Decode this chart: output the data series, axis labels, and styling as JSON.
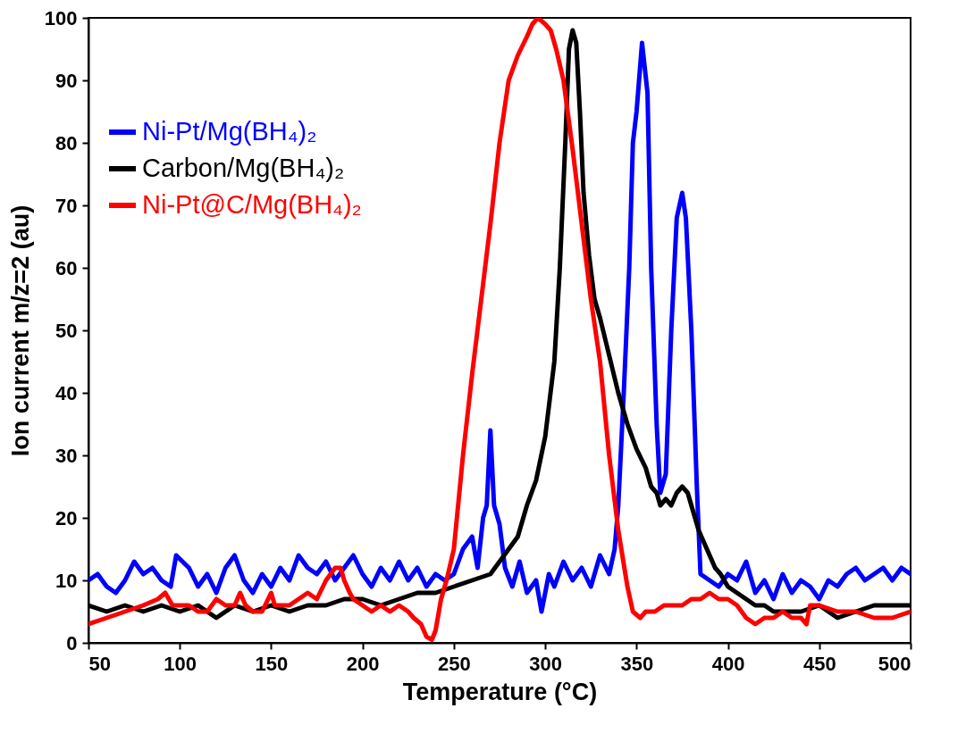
{
  "chart_data": {
    "type": "line",
    "xlabel": "Temperature (°C)",
    "ylabel": "Ion current m/z=2 (au)",
    "xlim": [
      50,
      500
    ],
    "ylim": [
      0,
      100
    ],
    "xticks": [
      50,
      100,
      150,
      200,
      250,
      300,
      350,
      400,
      450,
      500
    ],
    "yticks": [
      0,
      10,
      20,
      30,
      40,
      50,
      60,
      70,
      80,
      90,
      100
    ],
    "grid": false,
    "legend": "top left",
    "line_style": "solid",
    "series": [
      {
        "name": "Ni-Pt/Mg(BH₄)₂",
        "color": "#0000ff",
        "x": [
          50,
          55,
          60,
          65,
          70,
          75,
          80,
          85,
          90,
          95,
          98,
          105,
          110,
          115,
          120,
          125,
          130,
          135,
          140,
          145,
          150,
          155,
          160,
          165,
          170,
          175,
          180,
          185,
          190,
          195,
          200,
          205,
          210,
          215,
          220,
          225,
          230,
          235,
          240,
          245,
          250,
          255,
          260,
          263,
          266,
          268,
          270,
          272,
          275,
          278,
          282,
          286,
          290,
          295,
          298,
          302,
          305,
          310,
          315,
          320,
          325,
          330,
          335,
          338,
          340,
          343,
          346,
          348,
          350,
          353,
          356,
          358,
          361,
          363,
          366,
          369,
          372,
          375,
          377,
          380,
          383,
          385,
          390,
          395,
          400,
          405,
          410,
          415,
          420,
          425,
          430,
          435,
          440,
          445,
          450,
          455,
          460,
          465,
          470,
          475,
          480,
          485,
          490,
          495,
          500
        ],
        "values": [
          10,
          11,
          9,
          8,
          10,
          13,
          11,
          12,
          10,
          9,
          14,
          12,
          9,
          11,
          8,
          12,
          14,
          10,
          8,
          11,
          9,
          12,
          10,
          14,
          12,
          11,
          13,
          10,
          12,
          14,
          11,
          9,
          12,
          10,
          13,
          10,
          12,
          9,
          11,
          10,
          11,
          15,
          17,
          12,
          20,
          22,
          34,
          22,
          19,
          12,
          9,
          13,
          8,
          10,
          5,
          11,
          9,
          13,
          10,
          12,
          9,
          14,
          11,
          15,
          22,
          40,
          60,
          80,
          85,
          96,
          88,
          60,
          35,
          24,
          27,
          50,
          68,
          72,
          68,
          50,
          25,
          11,
          10,
          9,
          11,
          10,
          13,
          8,
          10,
          7,
          11,
          8,
          10,
          9,
          7,
          10,
          9,
          11,
          12,
          10,
          11,
          12,
          10,
          12,
          11
        ]
      },
      {
        "name": "Carbon/Mg(BH₄)₂",
        "color": "#000000",
        "x": [
          50,
          60,
          70,
          80,
          90,
          100,
          110,
          120,
          130,
          140,
          150,
          160,
          170,
          180,
          190,
          200,
          210,
          220,
          230,
          240,
          250,
          260,
          270,
          275,
          280,
          285,
          290,
          295,
          300,
          305,
          308,
          311,
          313,
          315,
          317,
          319,
          321,
          324,
          327,
          330,
          335,
          340,
          345,
          350,
          355,
          358,
          361,
          363,
          366,
          369,
          372,
          375,
          378,
          381,
          384,
          387,
          390,
          393,
          396,
          400,
          405,
          410,
          415,
          420,
          425,
          430,
          440,
          450,
          460,
          470,
          480,
          490,
          500
        ],
        "values": [
          6,
          5,
          6,
          5,
          6,
          5,
          6,
          4,
          6,
          5,
          6,
          5,
          6,
          6,
          7,
          7,
          6,
          7,
          8,
          8,
          9,
          10,
          11,
          13,
          15,
          17,
          22,
          26,
          33,
          45,
          60,
          80,
          95,
          98,
          96,
          85,
          72,
          62,
          55,
          52,
          46,
          40,
          35,
          31,
          28,
          25,
          24,
          22,
          23,
          22,
          24,
          25,
          24,
          21,
          18,
          16,
          14,
          12,
          11,
          9,
          8,
          7,
          6,
          6,
          5,
          5,
          5,
          6,
          4,
          5,
          6,
          6,
          6
        ]
      },
      {
        "name": "Ni-Pt@C/Mg(BH₄)₂",
        "color": "#ff0000",
        "x": [
          50,
          60,
          70,
          80,
          88,
          92,
          96,
          100,
          105,
          110,
          115,
          120,
          125,
          130,
          133,
          136,
          140,
          145,
          150,
          152,
          155,
          160,
          165,
          170,
          175,
          180,
          185,
          188,
          190,
          193,
          195,
          200,
          205,
          210,
          215,
          220,
          225,
          228,
          232,
          235,
          238,
          240,
          243,
          246,
          250,
          255,
          260,
          265,
          270,
          275,
          280,
          285,
          290,
          293,
          296,
          300,
          303,
          306,
          310,
          315,
          320,
          325,
          330,
          335,
          340,
          345,
          348,
          352,
          355,
          360,
          365,
          370,
          375,
          380,
          385,
          390,
          395,
          400,
          405,
          410,
          415,
          420,
          425,
          430,
          435,
          440,
          443,
          445,
          450,
          460,
          470,
          480,
          490,
          500
        ],
        "values": [
          3,
          4,
          5,
          6,
          7,
          8,
          6,
          6,
          6,
          5,
          5,
          7,
          6,
          6,
          8,
          6,
          5,
          5,
          8,
          6,
          6,
          6,
          7,
          8,
          7,
          10,
          12,
          12,
          10,
          8,
          7,
          6,
          5,
          6,
          5,
          6,
          5,
          4,
          3,
          1,
          0.5,
          2,
          7,
          10,
          15,
          30,
          43,
          55,
          67,
          80,
          90,
          94,
          97,
          99,
          100,
          99,
          98,
          95,
          90,
          79,
          67,
          55,
          45,
          30,
          18,
          9,
          5,
          4,
          5,
          5,
          6,
          6,
          6,
          7,
          7,
          8,
          7,
          7,
          6,
          4,
          3,
          4,
          4,
          5,
          4,
          4,
          3,
          6,
          6,
          5,
          5,
          4,
          4,
          5
        ]
      }
    ]
  }
}
